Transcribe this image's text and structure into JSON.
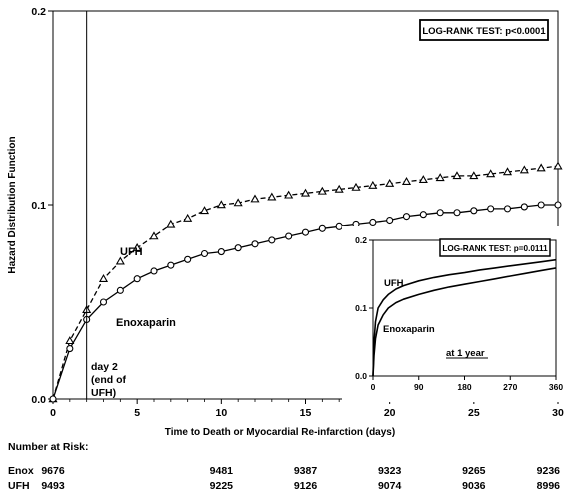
{
  "chart_data": {
    "type": "line",
    "ylabel": "Hazard Distribution Function",
    "xlabel": "Time to Death or Myocardial Re-infarction (days)",
    "xlim": [
      0,
      30
    ],
    "ylim": [
      0,
      0.2
    ],
    "x_ticks": [
      0,
      5,
      10,
      15,
      20,
      25,
      30
    ],
    "x_tick_labels": [
      "0",
      "5",
      "10",
      "15",
      "20",
      "25",
      "30"
    ],
    "y_ticks": [
      0,
      0.1,
      0.2
    ],
    "y_tick_labels": [
      "0.0",
      "0.1",
      "0.2"
    ],
    "grid": false,
    "logrank_text": "LOG-RANK TEST: p<0.0001",
    "day2_line_x": 2,
    "annotations": [
      "day 2",
      "(end of",
      "UFH)"
    ],
    "series": [
      {
        "name": "UFH",
        "style": "dashed",
        "marker": "triangle",
        "x": [
          0,
          1,
          2,
          3,
          4,
          5,
          6,
          7,
          8,
          9,
          10,
          11,
          12,
          13,
          14,
          15,
          16,
          17,
          18,
          19,
          20,
          21,
          22,
          23,
          24,
          25,
          26,
          27,
          28,
          29,
          30
        ],
        "y": [
          0,
          0.03,
          0.046,
          0.062,
          0.071,
          0.078,
          0.084,
          0.09,
          0.093,
          0.097,
          0.1,
          0.101,
          0.103,
          0.104,
          0.105,
          0.106,
          0.107,
          0.108,
          0.109,
          0.11,
          0.111,
          0.112,
          0.113,
          0.114,
          0.115,
          0.115,
          0.116,
          0.117,
          0.118,
          0.119,
          0.12
        ]
      },
      {
        "name": "Enoxaparin",
        "style": "solid",
        "marker": "circle",
        "x": [
          0,
          1,
          2,
          3,
          4,
          5,
          6,
          7,
          8,
          9,
          10,
          11,
          12,
          13,
          14,
          15,
          16,
          17,
          18,
          19,
          20,
          21,
          22,
          23,
          24,
          25,
          26,
          27,
          28,
          29,
          30
        ],
        "y": [
          0,
          0.026,
          0.041,
          0.05,
          0.056,
          0.062,
          0.066,
          0.069,
          0.072,
          0.075,
          0.076,
          0.078,
          0.08,
          0.082,
          0.084,
          0.086,
          0.088,
          0.089,
          0.09,
          0.091,
          0.092,
          0.094,
          0.095,
          0.096,
          0.096,
          0.097,
          0.098,
          0.098,
          0.099,
          0.1,
          0.1
        ]
      }
    ],
    "inset": {
      "type": "line",
      "xlim": [
        0,
        360
      ],
      "ylim": [
        0,
        0.2
      ],
      "x_ticks": [
        0,
        90,
        180,
        270,
        360
      ],
      "x_tick_labels": [
        "0",
        "90",
        "180",
        "270",
        "360"
      ],
      "y_ticks": [
        0,
        0.1,
        0.2
      ],
      "y_tick_labels": [
        "0.0",
        "0.1",
        "0.2"
      ],
      "logrank_text": "LOG-RANK TEST: p=0.0111",
      "caption": "at 1 year",
      "series": [
        {
          "name": "UFH",
          "x": [
            0,
            2,
            5,
            10,
            20,
            30,
            45,
            60,
            90,
            120,
            150,
            180,
            210,
            240,
            270,
            300,
            330,
            360
          ],
          "y": [
            0,
            0.05,
            0.08,
            0.1,
            0.112,
            0.12,
            0.128,
            0.133,
            0.14,
            0.145,
            0.149,
            0.152,
            0.156,
            0.159,
            0.162,
            0.165,
            0.168,
            0.171
          ]
        },
        {
          "name": "Enoxaparin",
          "x": [
            0,
            2,
            5,
            10,
            20,
            30,
            45,
            60,
            90,
            120,
            150,
            180,
            210,
            240,
            270,
            300,
            330,
            360
          ],
          "y": [
            0,
            0.03,
            0.055,
            0.075,
            0.09,
            0.1,
            0.108,
            0.113,
            0.12,
            0.126,
            0.131,
            0.135,
            0.139,
            0.143,
            0.147,
            0.151,
            0.155,
            0.159
          ]
        }
      ]
    }
  },
  "risk_table": {
    "title": "Number at Risk:",
    "x": [
      0,
      10,
      15,
      20,
      25,
      30
    ],
    "rows": [
      {
        "label": "Enox",
        "values": [
          "9676",
          "9481",
          "9387",
          "9323",
          "9265",
          "9236"
        ]
      },
      {
        "label": "UFH",
        "values": [
          "9493",
          "9225",
          "9126",
          "9074",
          "9036",
          "8996"
        ]
      }
    ]
  }
}
